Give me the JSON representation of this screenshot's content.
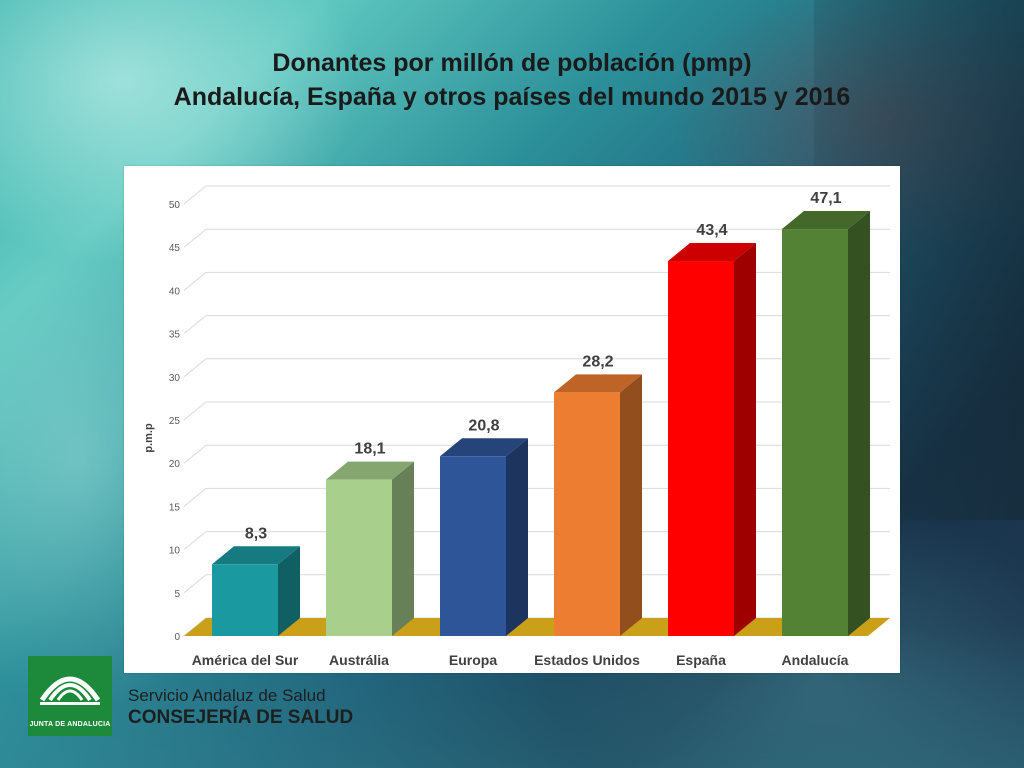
{
  "slide": {
    "title_line1": "Donantes por millón de población (pmp)",
    "title_line2": "Andalucía, España y otros países del mundo 2015 y 2016"
  },
  "branding": {
    "logo_text": "JUNTA DE ANDALUCIA",
    "org_line1": "Servicio Andaluz de Salud",
    "org_line2": "CONSEJERÍA DE SALUD"
  },
  "chart_data": {
    "type": "bar",
    "categories": [
      "América del Sur",
      "Austrália",
      "Europa",
      "Estados Unidos",
      "España",
      "Andalucía"
    ],
    "values": [
      8.3,
      18.1,
      20.8,
      28.2,
      43.4,
      47.1
    ],
    "data_labels": [
      "8,3",
      "18,1",
      "20,8",
      "28,2",
      "43,4",
      "47,1"
    ],
    "colors": [
      "#1a9aa0",
      "#a8cf8c",
      "#2e5597",
      "#ed7d31",
      "#ff0000",
      "#548235"
    ],
    "floor_color": "#c9a017",
    "ylabel": "p.m.p",
    "ylim": [
      0,
      50
    ],
    "yticks": [
      0,
      5,
      10,
      15,
      20,
      25,
      30,
      35,
      40,
      45,
      50
    ],
    "grid": true,
    "legend": "none",
    "style": "3d-column"
  }
}
